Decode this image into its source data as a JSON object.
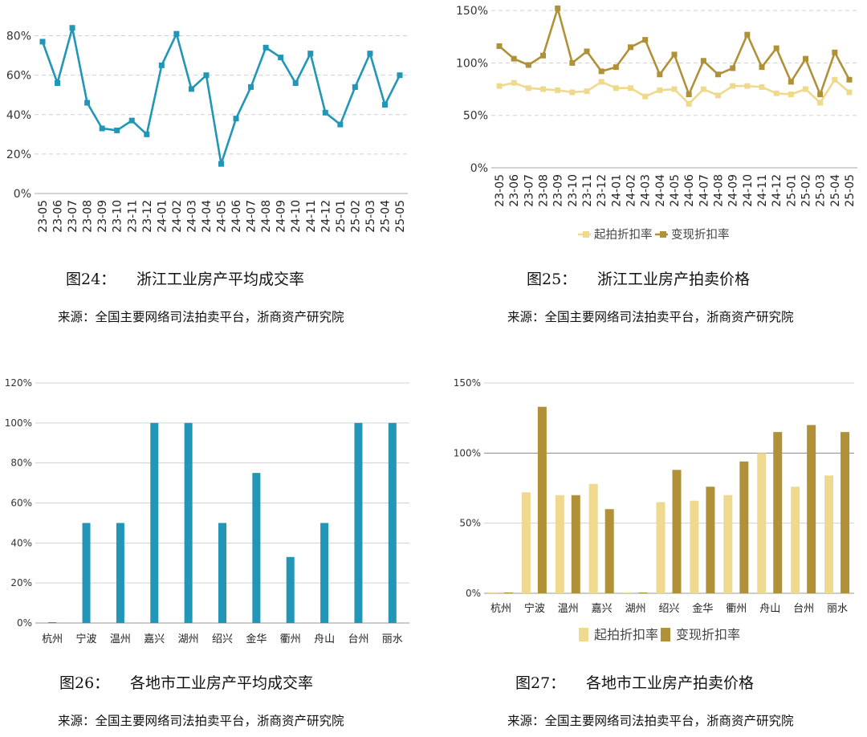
{
  "colors": {
    "teal": "#2196b6",
    "light_gold": "#efd98e",
    "dark_gold": "#b09137",
    "grid": "#d0d0d0"
  },
  "chart_data": [
    {
      "id": "fig24",
      "type": "line",
      "x": [
        "23-05",
        "23-06",
        "23-07",
        "23-08",
        "23-09",
        "23-10",
        "23-11",
        "23-12",
        "24-01",
        "24-02",
        "24-03",
        "24-04",
        "24-05",
        "24-06",
        "24-07",
        "24-08",
        "24-09",
        "24-10",
        "24-11",
        "24-12",
        "25-01",
        "25-02",
        "25-03",
        "25-04",
        "25-05"
      ],
      "series": [
        {
          "values": [
            77,
            56,
            84,
            46,
            33,
            32,
            37,
            30,
            65,
            81,
            53,
            60,
            15,
            38,
            54,
            74,
            69,
            56,
            71,
            41,
            35,
            54,
            71,
            45,
            60
          ]
        }
      ],
      "yticks": [
        "0%",
        "20%",
        "40%",
        "60%",
        "80%"
      ],
      "ylim": [
        0,
        90
      ],
      "grid": true
    },
    {
      "id": "fig25",
      "type": "line",
      "x": [
        "23-05",
        "23-06",
        "23-07",
        "23-08",
        "23-09",
        "23-10",
        "23-11",
        "23-12",
        "24-01",
        "24-02",
        "24-03",
        "24-04",
        "24-05",
        "24-06",
        "24-07",
        "24-08",
        "24-09",
        "24-10",
        "24-11",
        "24-12",
        "25-01",
        "25-02",
        "25-03",
        "25-04",
        "25-05"
      ],
      "series": [
        {
          "name": "起拍折扣率",
          "values": [
            78,
            81,
            76,
            75,
            74,
            72,
            73,
            82,
            76,
            76,
            68,
            74,
            75,
            61,
            75,
            69,
            78,
            78,
            77,
            71,
            70,
            75,
            62,
            84,
            72
          ]
        },
        {
          "name": "变现折扣率",
          "values": [
            116,
            104,
            98,
            107,
            152,
            100,
            111,
            92,
            96,
            115,
            122,
            89,
            108,
            70,
            102,
            89,
            95,
            127,
            96,
            114,
            82,
            104,
            70,
            110,
            84
          ]
        }
      ],
      "yticks": [
        "0%",
        "50%",
        "100%",
        "150%"
      ],
      "ylim": [
        0,
        160
      ],
      "legend": "bottom",
      "grid": true
    },
    {
      "id": "fig26",
      "type": "bar",
      "categories": [
        "杭州",
        "宁波",
        "温州",
        "嘉兴",
        "湖州",
        "绍兴",
        "金华",
        "衢州",
        "舟山",
        "台州",
        "丽水"
      ],
      "values": [
        0,
        50,
        50,
        100,
        100,
        50,
        75,
        33,
        50,
        100,
        100
      ],
      "yticks": [
        "0%",
        "20%",
        "40%",
        "60%",
        "80%",
        "100%",
        "120%"
      ],
      "ylim": [
        0,
        120
      ],
      "grid": true
    },
    {
      "id": "fig27",
      "type": "bar",
      "categories": [
        "杭州",
        "宁波",
        "温州",
        "嘉兴",
        "湖州",
        "绍兴",
        "金华",
        "衢州",
        "舟山",
        "台州",
        "丽水"
      ],
      "series": [
        {
          "name": "起拍折扣率",
          "values": [
            0,
            72,
            70,
            78,
            0,
            65,
            66,
            70,
            100,
            76,
            84
          ]
        },
        {
          "name": "变现折扣率",
          "values": [
            0,
            133,
            70,
            60,
            0,
            88,
            76,
            94,
            115,
            120,
            115
          ]
        }
      ],
      "yticks": [
        "0%",
        "50%",
        "100%",
        "150%"
      ],
      "ylim": [
        0,
        150
      ],
      "legend": "bottom",
      "grid": true
    }
  ],
  "captions": {
    "fig24": {
      "num": "图24：",
      "title": "浙江工业房产平均成交率",
      "source": "来源：全国主要网络司法拍卖平台，浙商资产研究院"
    },
    "fig25": {
      "num": "图25：",
      "title": "浙江工业房产拍卖价格",
      "source": "来源：全国主要网络司法拍卖平台，浙商资产研究院"
    },
    "fig26": {
      "num": "图26：",
      "title": "各地市工业房产平均成交率",
      "source": "来源：全国主要网络司法拍卖平台，浙商资产研究院"
    },
    "fig27": {
      "num": "图27：",
      "title": "各地市工业房产拍卖价格",
      "source": "来源：全国主要网络司法拍卖平台，浙商资产研究院"
    }
  }
}
